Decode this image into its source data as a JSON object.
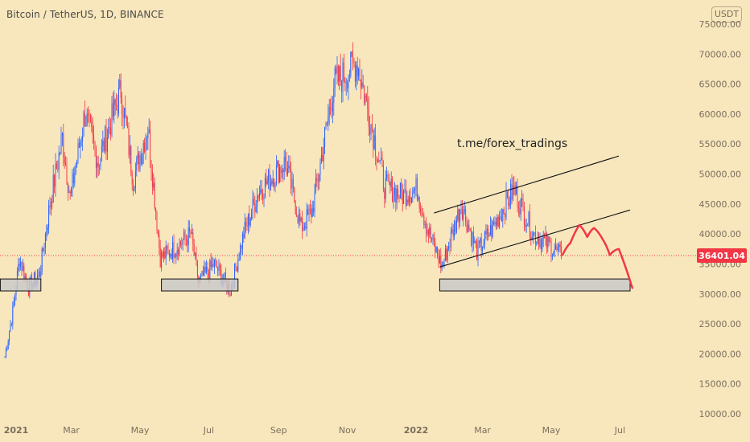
{
  "header": {
    "title": "Bitcoin / TetherUS, 1D, BINANCE",
    "currency_label": "USDT"
  },
  "annotation": {
    "text": "t.me/forex_tradings"
  },
  "price_tag": {
    "value": "36401.04",
    "color": "#f23645"
  },
  "colors": {
    "background": "#f8e7bd",
    "up_candle": "#2962ff",
    "down_candle": "#f23645",
    "projection": "#f23645",
    "support_box": "#c9c9c9",
    "axis_text": "#7b6e5b"
  },
  "chart_data": {
    "type": "candlestick",
    "title": "Bitcoin / TetherUS, 1D, BINANCE",
    "ylim": [
      10000,
      75000
    ],
    "y_scale": "linear",
    "y_ticks": [
      "75000.00",
      "70000.00",
      "65000.00",
      "60000.00",
      "55000.00",
      "50000.00",
      "45000.00",
      "40000.00",
      "35000.00",
      "30000.00",
      "25000.00",
      "20000.00",
      "15000.00",
      "10000.00"
    ],
    "x_ticks": [
      "2021",
      "Mar",
      "May",
      "Jul",
      "Sep",
      "Nov",
      "2022",
      "Mar",
      "May",
      "Jul"
    ],
    "price_path": [
      [
        "2021-01-01",
        19500
      ],
      [
        "2021-01-08",
        27000
      ],
      [
        "2021-01-14",
        36000
      ],
      [
        "2021-01-22",
        31000
      ],
      [
        "2021-02-01",
        33500
      ],
      [
        "2021-02-10",
        45000
      ],
      [
        "2021-02-21",
        56000
      ],
      [
        "2021-02-28",
        46000
      ],
      [
        "2021-03-13",
        60000
      ],
      [
        "2021-03-25",
        52000
      ],
      [
        "2021-04-14",
        64000
      ],
      [
        "2021-04-25",
        49000
      ],
      [
        "2021-05-08",
        58000
      ],
      [
        "2021-05-19",
        36000
      ],
      [
        "2021-05-31",
        37500
      ],
      [
        "2021-06-15",
        40000
      ],
      [
        "2021-06-22",
        32000
      ],
      [
        "2021-07-06",
        35000
      ],
      [
        "2021-07-20",
        30500
      ],
      [
        "2021-08-01",
        40000
      ],
      [
        "2021-08-14",
        47000
      ],
      [
        "2021-09-07",
        52000
      ],
      [
        "2021-09-21",
        41000
      ],
      [
        "2021-10-01",
        44000
      ],
      [
        "2021-10-20",
        65000
      ],
      [
        "2021-11-10",
        68500
      ],
      [
        "2021-11-26",
        55000
      ],
      [
        "2021-12-04",
        48000
      ],
      [
        "2021-12-20",
        46500
      ],
      [
        "2022-01-02",
        47500
      ],
      [
        "2022-01-10",
        41500
      ],
      [
        "2022-01-24",
        34500
      ],
      [
        "2022-02-10",
        45000
      ],
      [
        "2022-02-24",
        37000
      ],
      [
        "2022-03-10",
        41000
      ],
      [
        "2022-03-29",
        47500
      ],
      [
        "2022-04-15",
        40000
      ],
      [
        "2022-04-30",
        38000
      ],
      [
        "2022-05-10",
        36401
      ]
    ],
    "support_zones": [
      {
        "from": "2020-12-28",
        "to": "2021-02-02",
        "low": 30500,
        "high": 32500
      },
      {
        "from": "2021-05-20",
        "to": "2021-07-27",
        "low": 30500,
        "high": 32500
      },
      {
        "from": "2022-01-22",
        "to": "2022-07-10",
        "low": 30500,
        "high": 32500
      }
    ],
    "channel": {
      "upper": [
        [
          "2022-01-17",
          43500
        ],
        [
          "2022-06-30",
          53000
        ]
      ],
      "lower": [
        [
          "2022-01-22",
          34500
        ],
        [
          "2022-07-10",
          44000
        ]
      ]
    },
    "projection": [
      [
        "2022-05-11",
        36500
      ],
      [
        "2022-05-18",
        38500
      ],
      [
        "2022-05-26",
        41500
      ],
      [
        "2022-06-02",
        39500
      ],
      [
        "2022-06-08",
        41000
      ],
      [
        "2022-06-16",
        39000
      ],
      [
        "2022-06-22",
        36500
      ],
      [
        "2022-06-30",
        37500
      ],
      [
        "2022-07-12",
        31000
      ]
    ],
    "last_price": 36401.04,
    "grid": false
  }
}
